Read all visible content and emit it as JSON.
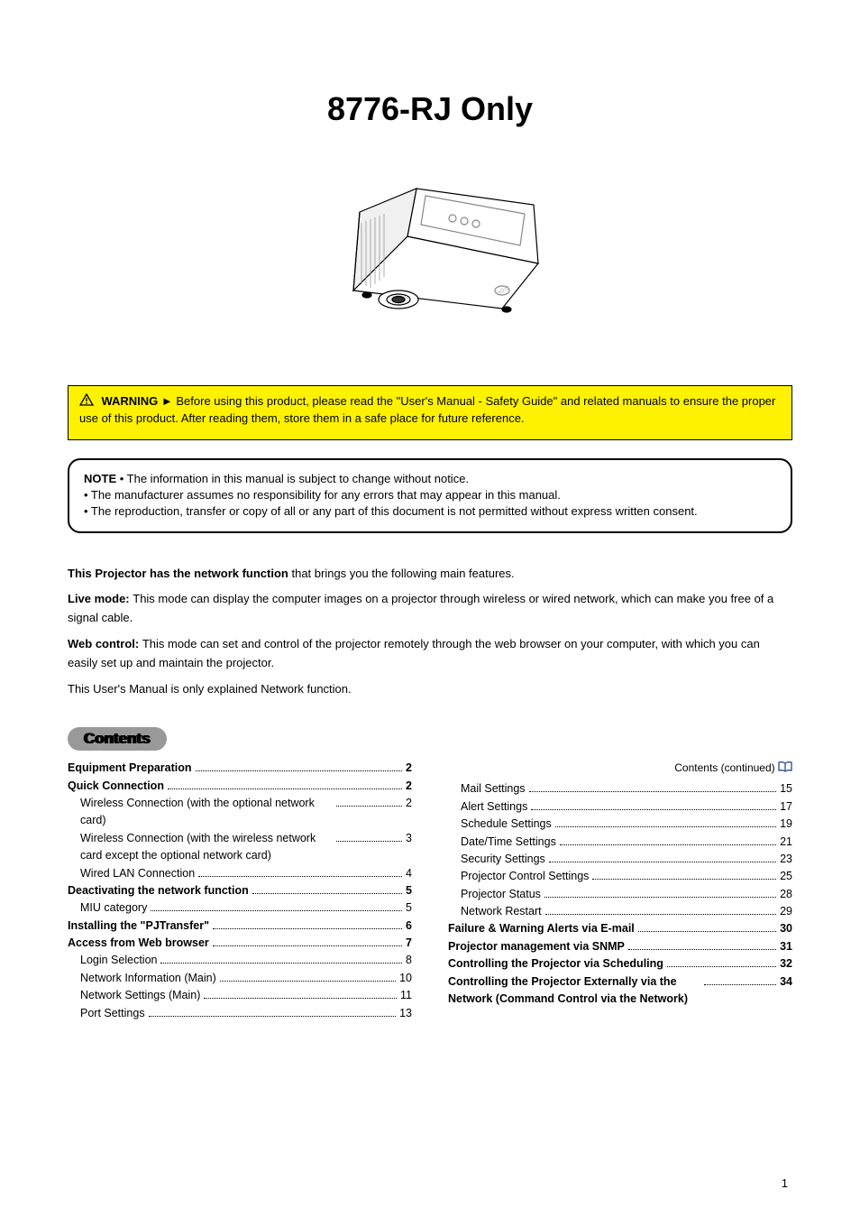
{
  "title": "8776-RJ Only",
  "warning": {
    "label": "WARNING",
    "body": " ► Before using this product, please read the \"User's Manual - Safety Guide\" and related manuals to ensure the proper use of this product. After reading them, store them in a safe place for future reference."
  },
  "note": {
    "label": "NOTE",
    "lines": [
      " • The information in this manual is subject to change without notice.",
      "• The manufacturer assumes no responsibility for any errors that may appear in this manual.",
      "• The reproduction, transfer or copy of all or any part of this document is not permitted without express written consent."
    ]
  },
  "intro": {
    "line1_bold": "This Projector has the network function ",
    "line1_rest": "that brings you the following main features.",
    "line2_bold": "Live mode: ",
    "line2_rest": "This mode can display the computer images on a projector through wireless or wired network, which can make you free of a signal cable.",
    "line3_bold": "Web control: ",
    "line3_rest": "This mode can set and control of the projector remotely through the web browser on your computer, with which you can easily set up and maintain the projector.",
    "line4": "This User's Manual is only explained Network function."
  },
  "contents_label": "Contents",
  "toc": {
    "left": [
      {
        "label": "Equipment Preparation",
        "page": "2",
        "bold": true
      },
      {
        "label": "Quick Connection",
        "page": "2",
        "bold": true
      },
      {
        "label": "Wireless Connection (with the optional network card)",
        "page": "2",
        "bold": false,
        "indent": 1,
        "wrap": true
      },
      {
        "label": "Wireless Connection (with the wireless network card except the optional network card)",
        "page": "3",
        "bold": false,
        "indent": 1,
        "wrap": true
      },
      {
        "label": "Wired LAN Connection",
        "page": "4",
        "bold": false,
        "indent": 1
      },
      {
        "label": "Deactivating the network function",
        "page": "5",
        "bold": true
      },
      {
        "label": "MIU category",
        "page": "5",
        "bold": false,
        "indent": 1
      },
      {
        "label": "Installing the \"PJTransfer\"",
        "page": "6",
        "bold": true
      },
      {
        "label": "Access from Web browser",
        "page": "7",
        "bold": true
      },
      {
        "label": "Login Selection",
        "page": "8",
        "bold": false,
        "indent": 1
      },
      {
        "label": "Network Information (Main)",
        "page": "10",
        "bold": false,
        "indent": 1
      },
      {
        "label": "Network Settings (Main)",
        "page": "11",
        "bold": false,
        "indent": 1
      },
      {
        "label": "Port Settings",
        "page": "13",
        "bold": false,
        "indent": 1
      }
    ],
    "right_header": {
      "prefix": "Contents (continued)",
      "icon": true
    },
    "right": [
      {
        "label": "Mail Settings",
        "page": "15",
        "bold": false,
        "indent": 1
      },
      {
        "label": "Alert Settings",
        "page": "17",
        "bold": false,
        "indent": 1
      },
      {
        "label": "Schedule Settings",
        "page": "19",
        "bold": false,
        "indent": 1
      },
      {
        "label": "Date/Time Settings",
        "page": "21",
        "bold": false,
        "indent": 1
      },
      {
        "label": "Security Settings",
        "page": "23",
        "bold": false,
        "indent": 1
      },
      {
        "label": "Projector Control Settings",
        "page": "25",
        "bold": false,
        "indent": 1
      },
      {
        "label": "Projector Status",
        "page": "28",
        "bold": false,
        "indent": 1
      },
      {
        "label": "Network Restart",
        "page": "29",
        "bold": false,
        "indent": 1
      },
      {
        "label": "Failure & Warning Alerts via E-mail",
        "page": "30",
        "bold": true
      },
      {
        "label": "Projector management via SNMP",
        "page": "31",
        "bold": true
      },
      {
        "label": "Controlling the Projector via Scheduling",
        "page": "32",
        "bold": true
      },
      {
        "label": "Controlling the Projector Externally via the Network (Command Control via the Network)",
        "page": "34",
        "bold": true,
        "wrap": true
      }
    ]
  },
  "page_number": "1"
}
